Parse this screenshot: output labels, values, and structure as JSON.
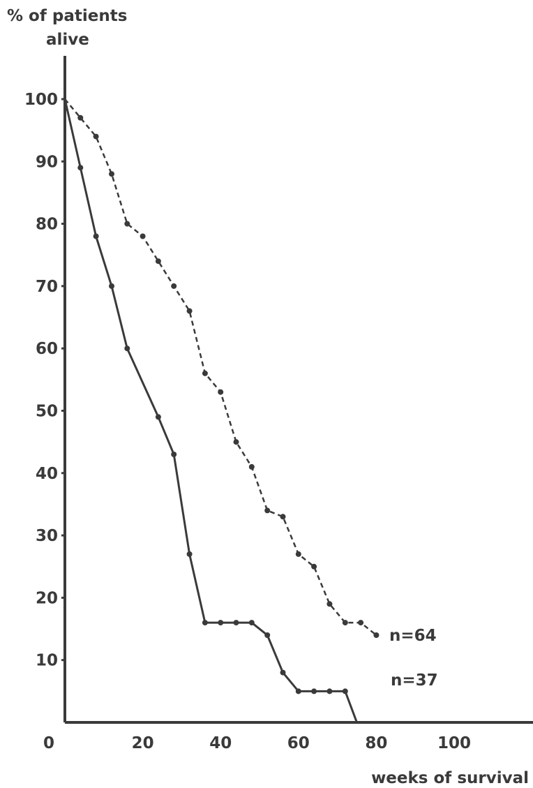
{
  "chart_data": {
    "type": "line",
    "title": "",
    "ylabel": [
      "% of patients",
      "alive"
    ],
    "xlabel": "weeks of survival",
    "xlim": [
      0,
      120
    ],
    "ylim": [
      0,
      100
    ],
    "x_ticks": [
      0,
      20,
      40,
      60,
      80,
      100
    ],
    "y_ticks": [
      10,
      20,
      30,
      40,
      50,
      60,
      70,
      80,
      90,
      100
    ],
    "grid": false,
    "series": [
      {
        "name": "n=64",
        "style": "dashed",
        "x": [
          0,
          4,
          8,
          12,
          16,
          20,
          24,
          28,
          32,
          36,
          40,
          44,
          48,
          52,
          56,
          60,
          64,
          68,
          72,
          76,
          80
        ],
        "y": [
          100,
          97,
          94,
          88,
          80,
          78,
          74,
          70,
          66,
          56,
          53,
          45,
          41,
          34,
          33,
          27,
          25,
          19,
          16,
          16,
          14
        ]
      },
      {
        "name": "n=37",
        "style": "solid",
        "x": [
          0,
          4,
          8,
          12,
          16,
          24,
          28,
          32,
          36,
          40,
          44,
          48,
          52,
          56,
          60,
          64,
          68,
          72,
          75,
          120
        ],
        "y": [
          100,
          89,
          78,
          70,
          60,
          49,
          43,
          27,
          16,
          16,
          16,
          16,
          14,
          8,
          5,
          5,
          5,
          5,
          0,
          0
        ]
      }
    ],
    "colors": {
      "line": "#3a3a3a",
      "background": "#ffffff"
    }
  }
}
